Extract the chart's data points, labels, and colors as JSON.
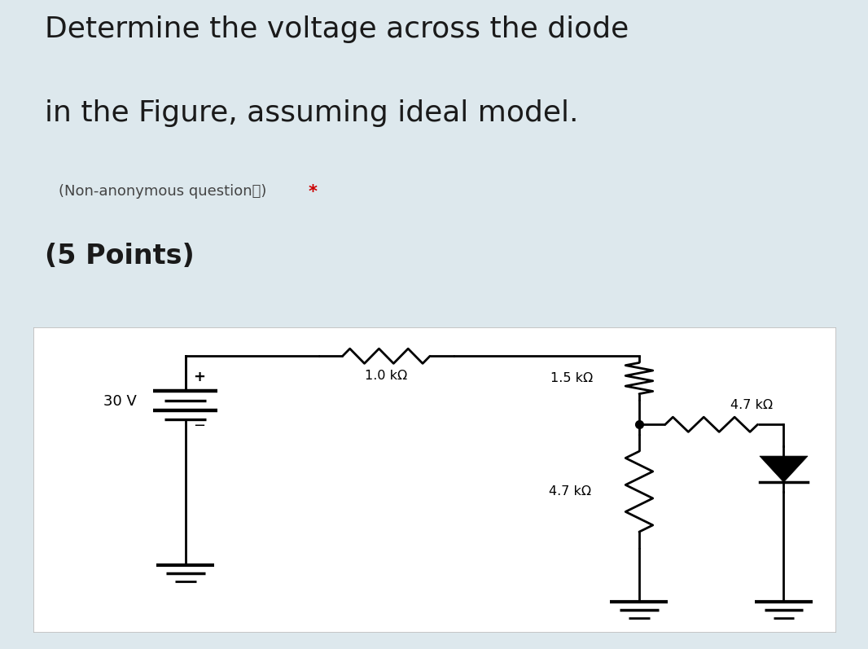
{
  "bg_color": "#dde8ed",
  "circuit_bg": "#ffffff",
  "title_line1": "Determine the voltage across the diode",
  "title_line2": "in the Figure, assuming ideal model.",
  "subtitle_text": "(Non-anonymous questionⓘ) ",
  "subtitle_star": "*",
  "subtitle_star_color": "#cc0000",
  "points": "(5 Points)",
  "title_color": "#1a1a1a",
  "subtitle_color": "#444444",
  "points_color": "#1a1a1a",
  "resistor_label_1": "1.0 kΩ",
  "resistor_label_2": "1.5 kΩ",
  "resistor_label_3": "4.7 kΩ",
  "resistor_label_4": "4.7 kΩ",
  "voltage_label": "30 V",
  "lw": 2.0
}
